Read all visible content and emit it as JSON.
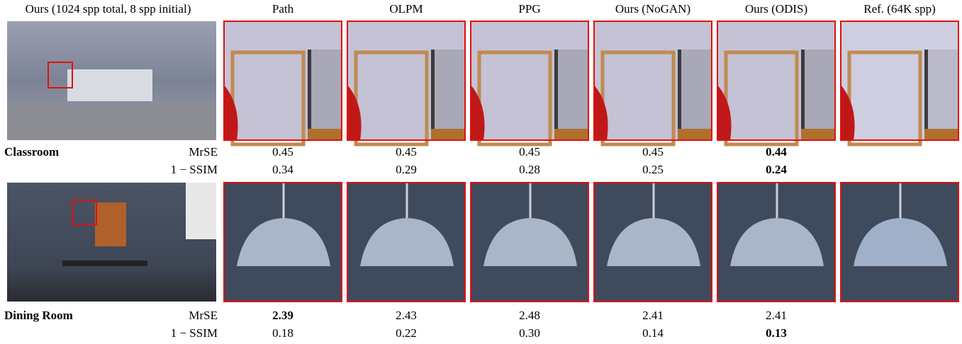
{
  "header": {
    "columns": [
      "Ours (1024 spp total, 8 spp initial)",
      "Path",
      "OLPM",
      "PPG",
      "Ours (NoGAN)",
      "Ours (ODIS)",
      "Ref. (64K spp)"
    ]
  },
  "scenes": [
    {
      "name": "Classroom",
      "metrics": [
        {
          "label": "MrSE",
          "values": [
            "0.45",
            "0.45",
            "0.45",
            "0.45",
            "0.44"
          ],
          "best": 4
        },
        {
          "label": "1 − SSIM",
          "values": [
            "0.34",
            "0.29",
            "0.28",
            "0.25",
            "0.24"
          ],
          "best": 4
        }
      ]
    },
    {
      "name": "Dining Room",
      "metrics": [
        {
          "label": "MrSE",
          "values": [
            "2.39",
            "2.43",
            "2.48",
            "2.41",
            "2.41"
          ],
          "best": 0
        },
        {
          "label": "1 − SSIM",
          "values": [
            "0.18",
            "0.22",
            "0.30",
            "0.14",
            "0.13"
          ],
          "best": 4
        }
      ]
    }
  ]
}
